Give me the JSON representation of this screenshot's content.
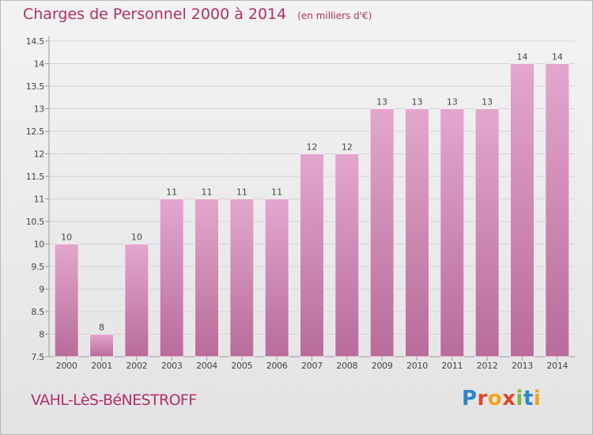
{
  "title": "Charges de Personnel 2000 à 2014",
  "subtitle": "(en milliers d'€)",
  "municipality": "VAHL-LèS-BéNESTROFF",
  "logo": "Proxiti",
  "colors": {
    "accent": "#b0306a",
    "bar_top": "#e3a7cd",
    "bar_bottom": "#b86c99"
  },
  "chart_data": {
    "type": "bar",
    "categories": [
      "2000",
      "2001",
      "2002",
      "2003",
      "2004",
      "2005",
      "2006",
      "2007",
      "2008",
      "2009",
      "2010",
      "2011",
      "2012",
      "2013",
      "2014"
    ],
    "values": [
      10,
      8,
      10,
      11,
      11,
      11,
      11,
      12,
      12,
      13,
      13,
      13,
      13,
      14,
      14
    ],
    "data_labels": [
      "10",
      "8",
      "10",
      "11",
      "11",
      "11",
      "11",
      "12",
      "12",
      "13",
      "13",
      "13",
      "13",
      "14",
      "14"
    ],
    "yticks": [
      "7.5",
      "8",
      "8.5",
      "9",
      "9.5",
      "10",
      "10.5",
      "11",
      "11.5",
      "12",
      "12.5",
      "13",
      "13.5",
      "14",
      "14.5"
    ],
    "ylim": [
      7.5,
      14.5
    ],
    "grid": true,
    "legend": "none"
  }
}
